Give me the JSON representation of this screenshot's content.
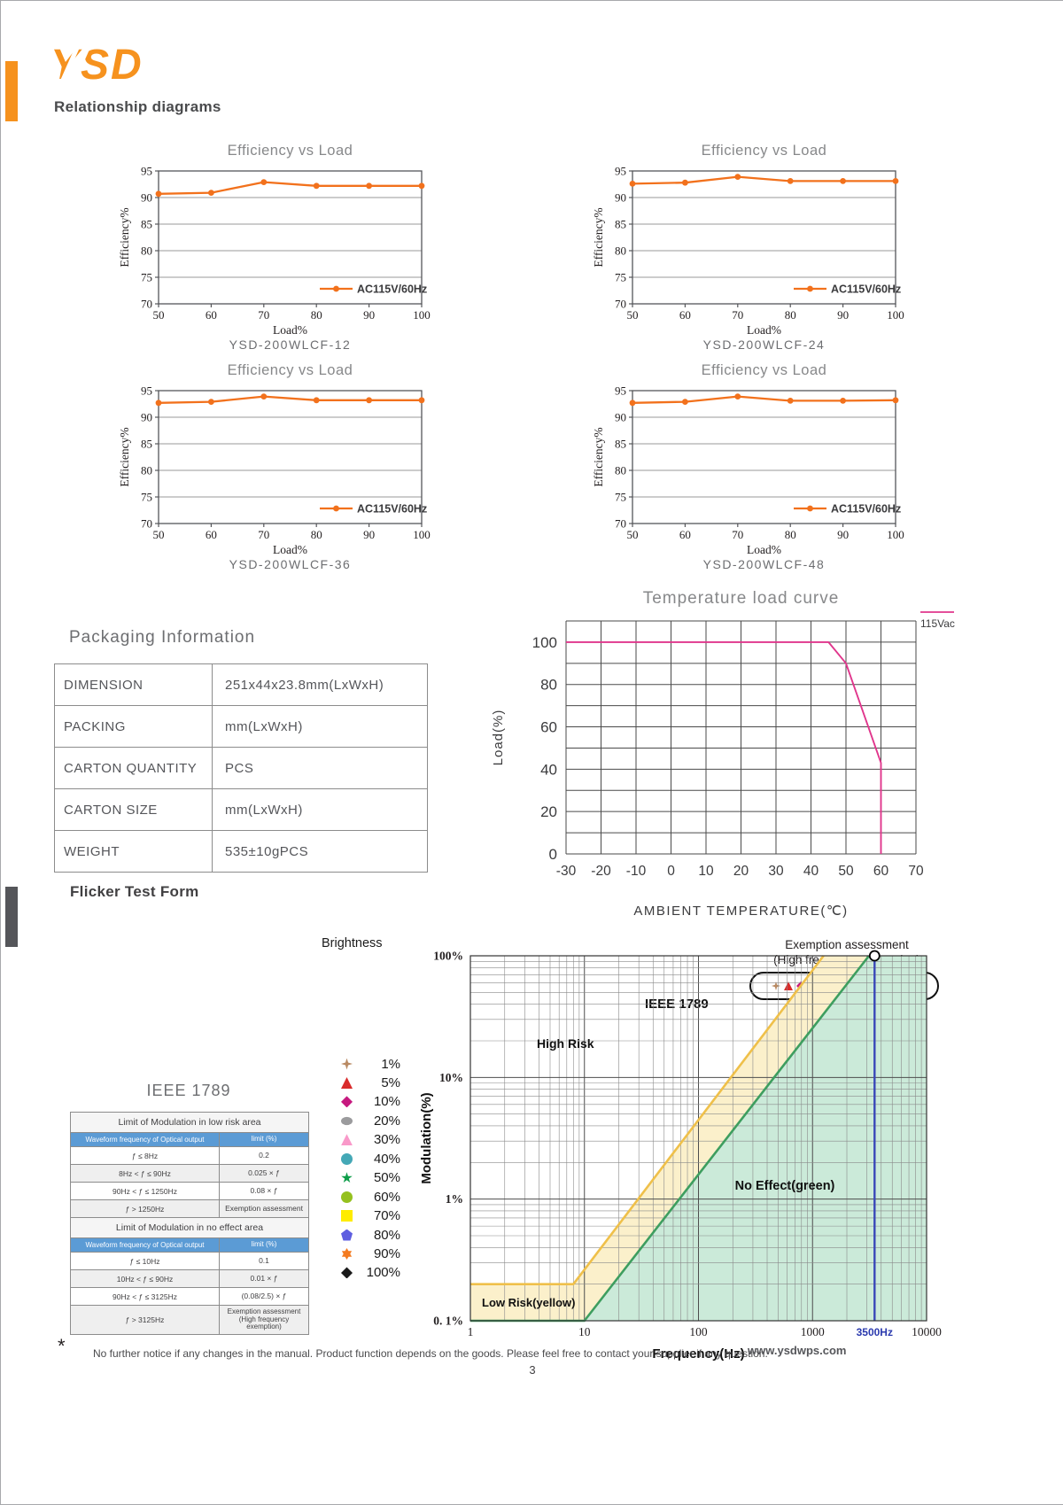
{
  "header": {
    "logo_text": "YSD",
    "section1_title": "Relationship diagrams"
  },
  "colors": {
    "accent_orange": "#F6921E",
    "efficiency_line": "#F2711C",
    "temp_line": "#E0368C",
    "table_header_blue": "#5B9BD5",
    "flicker_yellow_fill": "#FBF0CB",
    "flicker_yellow_line": "#EFC04A",
    "flicker_green_fill": "#CBEAD9",
    "flicker_green_line": "#3E9E5F",
    "flicker_blue_line": "#3947B8"
  },
  "chart_data": [
    {
      "id": "eff12",
      "type": "line",
      "title": "Efficiency vs Load",
      "xlabel": "Load%",
      "ylabel": "Efficiency%",
      "caption": "YSD-200WLCF-12",
      "legend": "AC115V/60Hz",
      "x": [
        50,
        60,
        70,
        80,
        90,
        100
      ],
      "values": [
        90.7,
        90.9,
        92.9,
        92.2,
        92.2,
        92.2
      ],
      "ylim": [
        70,
        95
      ],
      "yticks": [
        70,
        75,
        80,
        85,
        90,
        95
      ],
      "color": "#F2711C"
    },
    {
      "id": "eff24",
      "type": "line",
      "title": "Efficiency vs Load",
      "xlabel": "Load%",
      "ylabel": "Efficiency%",
      "caption": "YSD-200WLCF-24",
      "legend": "AC115V/60Hz",
      "x": [
        50,
        60,
        70,
        80,
        90,
        100
      ],
      "values": [
        92.6,
        92.8,
        93.9,
        93.1,
        93.1,
        93.1
      ],
      "ylim": [
        70,
        95
      ],
      "yticks": [
        70,
        75,
        80,
        85,
        90,
        95
      ],
      "color": "#F2711C"
    },
    {
      "id": "eff36",
      "type": "line",
      "title": "Efficiency vs Load",
      "xlabel": "Load%",
      "ylabel": "Efficiency%",
      "caption": "YSD-200WLCF-36",
      "legend": "AC115V/60Hz",
      "x": [
        50,
        60,
        70,
        80,
        90,
        100
      ],
      "values": [
        92.7,
        92.9,
        93.9,
        93.2,
        93.2,
        93.2
      ],
      "ylim": [
        70,
        95
      ],
      "yticks": [
        70,
        75,
        80,
        85,
        90,
        95
      ],
      "color": "#F2711C"
    },
    {
      "id": "eff48",
      "type": "line",
      "title": "Efficiency vs Load",
      "xlabel": "Load%",
      "ylabel": "Efficiency%",
      "caption": "YSD-200WLCF-48",
      "legend": "AC115V/60Hz",
      "x": [
        50,
        60,
        70,
        80,
        90,
        100
      ],
      "values": [
        92.7,
        92.9,
        93.9,
        93.1,
        93.1,
        93.2
      ],
      "ylim": [
        70,
        95
      ],
      "yticks": [
        70,
        75,
        80,
        85,
        90,
        95
      ],
      "color": "#F2711C"
    },
    {
      "id": "temp",
      "type": "line",
      "title": "Temperature load curve",
      "xlabel": "AMBIENT TEMPERATURE(℃)",
      "ylabel": "Load(%)",
      "legend": "115Vac",
      "color": "#E0368C",
      "xlim": [
        -30,
        70
      ],
      "ylim": [
        0,
        110
      ],
      "xticks": [
        -30,
        -20,
        -10,
        0,
        10,
        20,
        30,
        40,
        50,
        60,
        70
      ],
      "yticks": [
        0,
        20,
        40,
        60,
        80,
        100
      ],
      "points": [
        [
          -30,
          100
        ],
        [
          45,
          100
        ],
        [
          50,
          90
        ],
        [
          60,
          43
        ],
        [
          60,
          0
        ]
      ]
    },
    {
      "id": "flicker",
      "type": "area",
      "title": "IEEE 1789",
      "xlabel": "Frequency(Hz)",
      "ylabel": "Modulation(%)",
      "xscale": "log",
      "yscale": "log",
      "xlim": [
        1,
        10000
      ],
      "ylim": [
        0.1,
        100
      ],
      "xtick_labels": [
        "1",
        "10",
        "100",
        "1000",
        "10000"
      ],
      "ytick_labels": [
        "100%",
        "10%",
        "1%",
        "0. 1%"
      ],
      "marker_line": {
        "x": 3500,
        "label": "3500Hz"
      },
      "region_labels": {
        "high_risk": "High Risk",
        "low_risk": "Low Risk(yellow)",
        "no_effect": "No Effect(green)"
      },
      "low_risk_boundary": [
        [
          1,
          0.2
        ],
        [
          8,
          0.2
        ],
        [
          1250,
          100
        ]
      ],
      "no_effect_boundary": [
        [
          1,
          0.1
        ],
        [
          10,
          0.1
        ],
        [
          3125,
          100
        ]
      ]
    }
  ],
  "packaging": {
    "title": "Packaging Information",
    "rows": [
      {
        "label": "DIMENSION",
        "value": "251x44x23.8mm(LxWxH)"
      },
      {
        "label": "PACKING",
        "value": "mm(LxWxH)"
      },
      {
        "label": "CARTON QUANTITY",
        "value": "PCS"
      },
      {
        "label": "CARTON SIZE",
        "value": "mm(LxWxH)"
      },
      {
        "label": "WEIGHT",
        "value": "535±10gPCS"
      }
    ]
  },
  "flicker": {
    "section_title": "Flicker Test Form",
    "table_title": "IEEE 1789",
    "chart_label": "IEEE 1789",
    "exemption_line1": "Exemption assessment",
    "exemption_line2": "(High frequency exemption)",
    "brightness_title": "Brightness",
    "legend": [
      {
        "label": "1%",
        "marker": "four-point-star",
        "color": "#B98A63"
      },
      {
        "label": "5%",
        "marker": "triangle",
        "color": "#D92B2B"
      },
      {
        "label": "10%",
        "marker": "diamond",
        "color": "#C6197F"
      },
      {
        "label": "20%",
        "marker": "ellipse",
        "color": "#9B9B9D"
      },
      {
        "label": "30%",
        "marker": "triangle",
        "color": "#F999C9"
      },
      {
        "label": "40%",
        "marker": "circle",
        "color": "#44A8B6"
      },
      {
        "label": "50%",
        "marker": "star5",
        "color": "#0D9D49"
      },
      {
        "label": "60%",
        "marker": "circle",
        "color": "#95C11F"
      },
      {
        "label": "70%",
        "marker": "square",
        "color": "#FFEC00"
      },
      {
        "label": "80%",
        "marker": "pentagon",
        "color": "#5E5EE0"
      },
      {
        "label": "90%",
        "marker": "star6",
        "color": "#F47B20"
      },
      {
        "label": "100%",
        "marker": "diamond",
        "color": "#1A1A1A"
      }
    ],
    "table": {
      "low_risk_header": "Limit of Modulation in low risk area",
      "no_effect_header": "Limit of Modulation in no effect area",
      "col_freq": "Waveform frequency of Optical output",
      "col_limit": "limit (%)",
      "low_risk_rows": [
        {
          "freq": "ƒ ≤ 8Hz",
          "limit": "0.2"
        },
        {
          "freq": "8Hz < ƒ ≤ 90Hz",
          "limit": "0.025 × ƒ"
        },
        {
          "freq": "90Hz < ƒ ≤ 1250Hz",
          "limit": "0.08 × ƒ"
        },
        {
          "freq": "ƒ > 1250Hz",
          "limit": "Exemption assessment"
        }
      ],
      "no_effect_rows": [
        {
          "freq": "ƒ ≤ 10Hz",
          "limit": "0.1"
        },
        {
          "freq": "10Hz < ƒ ≤ 90Hz",
          "limit": "0.01 × ƒ"
        },
        {
          "freq": "90Hz < ƒ ≤ 3125Hz",
          "limit": "(0.08/2.5) × ƒ"
        },
        {
          "freq": "ƒ > 3125Hz",
          "limit": "Exemption assessment (High frequency exemption)"
        }
      ]
    }
  },
  "footer": {
    "star": "*",
    "note": "No further notice if any changes in the manual. Product function depends on the goods. Please feel free to contact your supplier if any question.",
    "website": "www.ysdwps.com",
    "page_number": "3"
  }
}
